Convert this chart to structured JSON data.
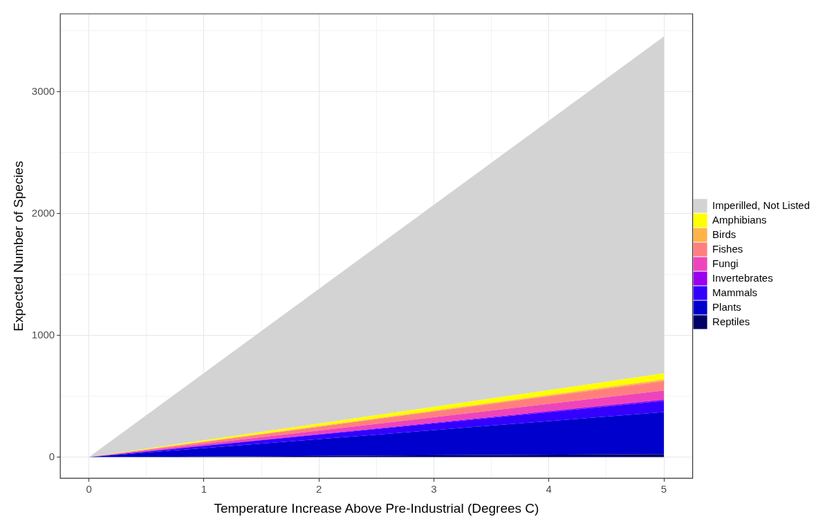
{
  "chart_data": {
    "type": "area",
    "stacked": true,
    "xlabel": "Temperature Increase Above Pre-Industrial (Degrees C)",
    "ylabel": "Expected Number of Species",
    "x": [
      0,
      5
    ],
    "series": [
      {
        "name": "Reptiles",
        "color": "#000066",
        "values": [
          0,
          25
        ]
      },
      {
        "name": "Plants",
        "color": "#0000cc",
        "values": [
          0,
          345
        ]
      },
      {
        "name": "Mammals",
        "color": "#3300ff",
        "values": [
          0,
          92
        ]
      },
      {
        "name": "Invertebrates",
        "color": "#9900ee",
        "values": [
          0,
          10
        ]
      },
      {
        "name": "Fungi",
        "color": "#ee44bb",
        "values": [
          0,
          75
        ]
      },
      {
        "name": "Fishes",
        "color": "#ff7f7f",
        "values": [
          0,
          78
        ]
      },
      {
        "name": "Birds",
        "color": "#ffb347",
        "values": [
          0,
          12
        ]
      },
      {
        "name": "Amphibians",
        "color": "#ffff00",
        "values": [
          0,
          51
        ]
      },
      {
        "name": "Imperilled, Not Listed",
        "color": "#d3d3d3",
        "values": [
          0,
          2767
        ]
      }
    ],
    "xlim": [
      -0.25,
      5.25
    ],
    "xticks": [
      0,
      {
        "value": 0.5,
        "label": null
      },
      1,
      {
        "value": 1.5,
        "label": null
      },
      2,
      {
        "value": 2.5,
        "label": null
      },
      3,
      {
        "value": 3.5,
        "label": null
      },
      4,
      {
        "value": 4.5,
        "label": null
      },
      5
    ],
    "ylim": [
      -174,
      3641
    ],
    "yticks": [
      0,
      {
        "value": 500,
        "label": null
      },
      1000,
      {
        "value": 1500,
        "label": null
      },
      2000,
      {
        "value": 2500,
        "label": null
      },
      3000,
      {
        "value": 3500,
        "label": null
      }
    ],
    "grid": true,
    "legend": "right"
  }
}
